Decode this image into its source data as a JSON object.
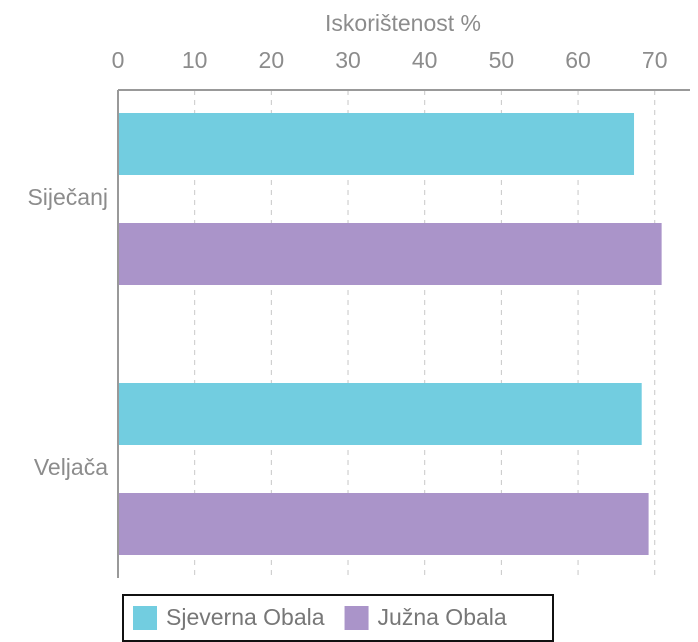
{
  "chart_data": {
    "type": "barh",
    "x_label": "Iskorištenost %",
    "categories": [
      "Siječanj",
      "Veljača"
    ],
    "series": [
      {
        "name": "Sjeverna Obala",
        "color": "#72cde0",
        "values": [
          67.3,
          68.3
        ]
      },
      {
        "name": "Južna Obala",
        "color": "#aa94c9",
        "values": [
          70.9,
          69.2
        ]
      }
    ],
    "xlim": [
      0,
      74.6
    ],
    "xticks": [
      0,
      10,
      20,
      30,
      40,
      50,
      60,
      70
    ],
    "grid": true,
    "legend": "bottom"
  }
}
